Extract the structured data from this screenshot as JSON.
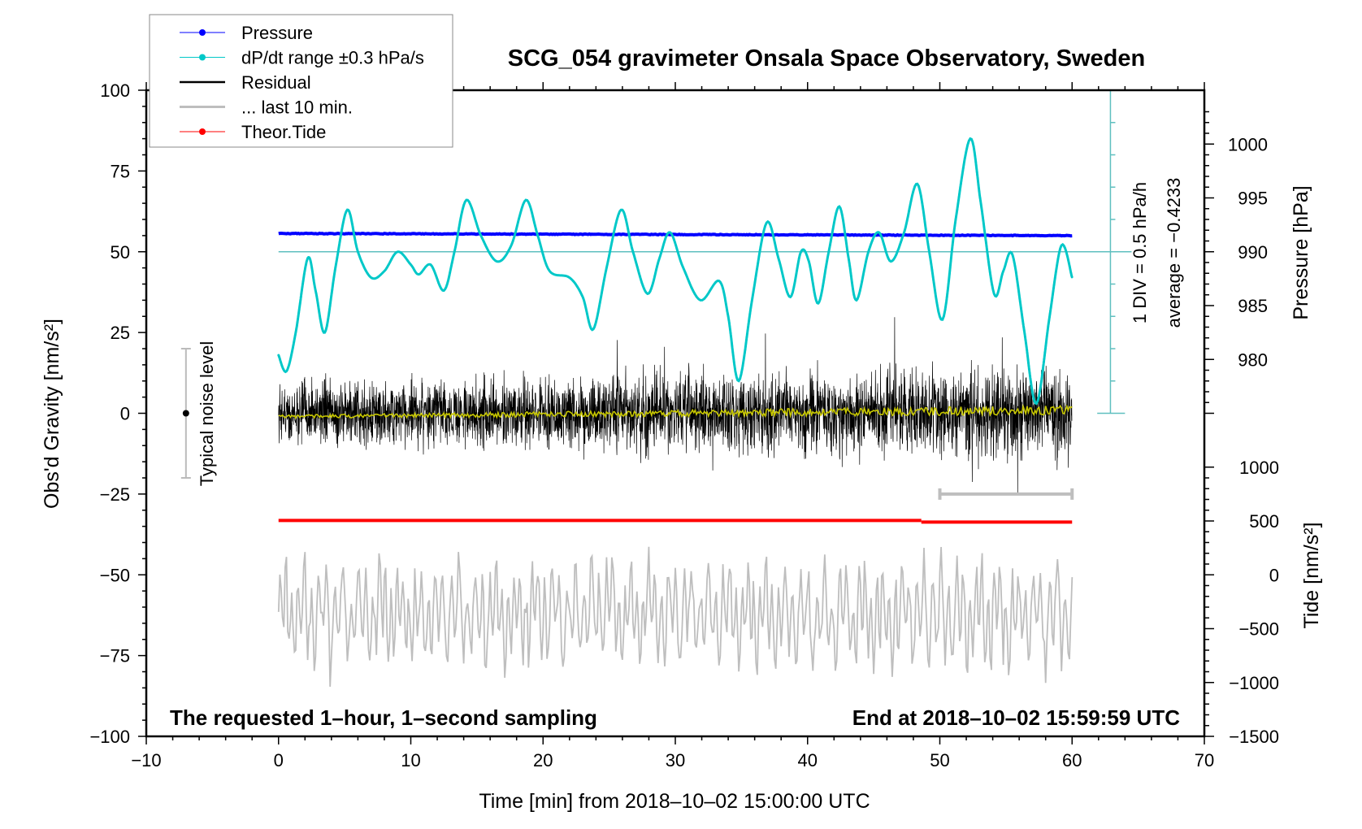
{
  "chart_data": {
    "type": "line",
    "title": "SCG_054 gravimeter Onsala Space Observatory, Sweden",
    "xlabel": "Time [min] from 2018–10–02 15:00:00 UTC",
    "ylabel_left": "Obs'd Gravity [nm/s²]",
    "ylabel_right_pressure": "Pressure [hPa]",
    "ylabel_right_tide": "Tide [nm/s²]",
    "xlim": [
      -10,
      70
    ],
    "ylim": [
      -100,
      100
    ],
    "x_ticks": [
      "−10",
      "0",
      "10",
      "20",
      "30",
      "40",
      "50",
      "60",
      "70"
    ],
    "y_ticks": [
      "−100",
      "−75",
      "−50",
      "−25",
      "0",
      "25",
      "50",
      "75",
      "100"
    ],
    "pressure_ticks": [
      "980",
      "985",
      "990",
      "995",
      "1000"
    ],
    "tide_ticks": [
      "−1500",
      "−1000",
      "−500",
      "0",
      "500",
      "1000"
    ],
    "legend": {
      "placement": "top-left",
      "items": [
        {
          "label": "Pressure",
          "color": "#0000ff",
          "style": "line-dot"
        },
        {
          "label": "dP/dt range ±0.3 hPa/s",
          "color": "#00c8c8",
          "style": "line-dot"
        },
        {
          "label": "Residual",
          "color": "#000000",
          "style": "line"
        },
        {
          "label": "... last 10 min.",
          "color": "#bebebe",
          "style": "thick-line"
        },
        {
          "label": "Theor.Tide",
          "color": "#ff0000",
          "style": "line-dot"
        }
      ]
    },
    "annotations": {
      "bottom_left": "The requested 1–hour, 1–second sampling",
      "bottom_right": "End at 2018–10–02 15:59:59 UTC",
      "div_label": "1 DIV = 0.5 hPa/h",
      "average_label": "average = −0.4233",
      "noise_label": "Typical noise level"
    },
    "noise_level_bar": {
      "x": -7,
      "range": [
        -20,
        20
      ],
      "center": 0
    },
    "last10_bar": {
      "x_range": [
        50,
        60
      ],
      "y": -25
    },
    "series": [
      {
        "name": "Pressure",
        "unit": "hPa",
        "x_range": [
          0,
          60
        ],
        "start": 991.7,
        "end": 991.5,
        "color": "#0000ff"
      },
      {
        "name": "dP/dt range ±0.3 hPa/s",
        "color": "#00c8c8",
        "reference_level": 50,
        "points": [
          [
            0,
            18
          ],
          [
            0.6,
            13
          ],
          [
            1.3,
            25
          ],
          [
            2.2,
            48
          ],
          [
            2.8,
            38
          ],
          [
            3.5,
            25
          ],
          [
            4.3,
            45
          ],
          [
            5.2,
            63
          ],
          [
            6,
            50
          ],
          [
            7,
            42
          ],
          [
            8,
            44
          ],
          [
            9,
            50
          ],
          [
            10,
            46
          ],
          [
            10.6,
            43
          ],
          [
            11.5,
            46
          ],
          [
            12.5,
            38
          ],
          [
            13.3,
            50
          ],
          [
            14.2,
            66
          ],
          [
            15.3,
            55
          ],
          [
            16.5,
            47
          ],
          [
            17.6,
            52
          ],
          [
            18.7,
            66
          ],
          [
            19.6,
            55
          ],
          [
            20.5,
            44
          ],
          [
            22,
            42
          ],
          [
            23,
            36
          ],
          [
            23.8,
            26
          ],
          [
            24.8,
            45
          ],
          [
            25.9,
            63
          ],
          [
            26.8,
            50
          ],
          [
            27.9,
            37
          ],
          [
            28.8,
            48
          ],
          [
            29.6,
            56
          ],
          [
            30.6,
            45
          ],
          [
            31.9,
            35
          ],
          [
            33.3,
            41
          ],
          [
            34,
            30
          ],
          [
            34.8,
            10
          ],
          [
            35.8,
            35
          ],
          [
            36.9,
            59
          ],
          [
            37.8,
            48
          ],
          [
            38.7,
            36
          ],
          [
            39.5,
            50
          ],
          [
            40.1,
            47
          ],
          [
            40.8,
            34
          ],
          [
            41.6,
            50
          ],
          [
            42.4,
            64
          ],
          [
            43.1,
            48
          ],
          [
            43.7,
            35
          ],
          [
            44.6,
            50
          ],
          [
            45.4,
            56
          ],
          [
            46.3,
            47
          ],
          [
            47.3,
            56
          ],
          [
            48.3,
            71
          ],
          [
            49.2,
            50
          ],
          [
            50.2,
            29
          ],
          [
            51.2,
            60
          ],
          [
            52.3,
            85
          ],
          [
            53.1,
            65
          ],
          [
            54.1,
            37
          ],
          [
            54.8,
            44
          ],
          [
            55.5,
            49
          ],
          [
            56.4,
            25
          ],
          [
            57.3,
            3
          ],
          [
            58.3,
            30
          ],
          [
            59.2,
            52
          ],
          [
            60,
            42
          ]
        ]
      },
      {
        "name": "Residual",
        "color": "#000000",
        "x_range": [
          0,
          60
        ],
        "typical_range": [
          -15,
          15
        ],
        "extreme_range": [
          -28,
          38
        ]
      },
      {
        "color": "#c8c800",
        "start": -1,
        "end": 1
      },
      {
        "name": "... last 10 min.",
        "color": "#bebebe",
        "center": -62,
        "range": [
          -90,
          -40
        ]
      },
      {
        "name": "Theor.Tide",
        "unit": "nm/s²",
        "color": "#ff0000",
        "start": 505,
        "end": 490,
        "step_at": 48.6
      }
    ],
    "grid": false
  }
}
